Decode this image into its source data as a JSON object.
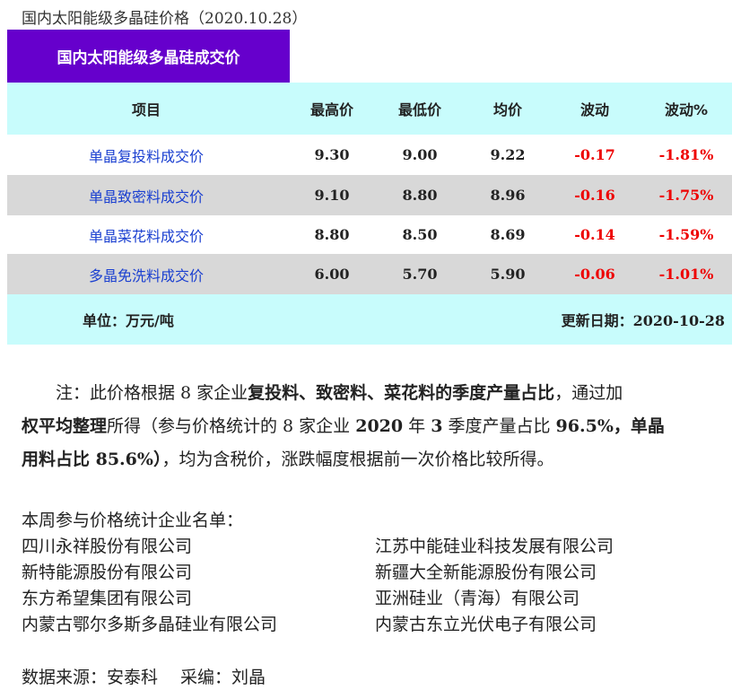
{
  "title": "国内太阳能级多晶硅价格（2020.10.28）",
  "banner": "国内太阳能级多晶硅成交价",
  "headers": [
    "项目",
    "最高价",
    "最低价",
    "均价",
    "波动",
    "波动%"
  ],
  "rows": [
    [
      "单晶复投料成交价",
      "9.30",
      "9.00",
      "9.22",
      "-0.17",
      "-1.81%"
    ],
    [
      "单晶致密料成交价",
      "9.10",
      "8.80",
      "8.96",
      "-0.16",
      "-1.75%"
    ],
    [
      "单晶菜花料成交价",
      "8.80",
      "8.50",
      "8.69",
      "-0.14",
      "-1.59%"
    ],
    [
      "多晶免洗料成交价",
      "6.00",
      "5.70",
      "5.90",
      "-0.06",
      "-1.01%"
    ]
  ],
  "footer": {
    "unit": "单位：万元/吨",
    "updated": "更新日期：2020-10-28"
  },
  "note": {
    "l1a": "注：此价格根据 8 家企业",
    "l1b": "复投料、致密料、菜花料的季度产量占比",
    "l1c": "，通过加",
    "l2a": "权平均整理",
    "l2b": "所得（参与价格统计的 8 家企业 ",
    "l2c": "2020",
    "l2d": " 年 ",
    "l2e": "3",
    "l2f": " 季度产量占比 ",
    "l2g": "96.5%",
    "l2h": "，单晶",
    "l3a": "用料占比 85.6%）",
    "l3b": "，均为含税价，涨跌幅度根据前一次价格比较所得。"
  },
  "list_title": "本周参与价格统计企业名单：",
  "companies_left": [
    "四川永祥股份有限公司",
    "新特能源股份有限公司",
    "东方希望集团有限公司",
    "内蒙古鄂尔多斯多晶硅业有限公司"
  ],
  "companies_right": [
    "江苏中能硅业科技发展有限公司",
    "新疆大全新能源股份有限公司",
    "亚洲硅业（青海）有限公司",
    "内蒙古东立光伏电子有限公司"
  ],
  "source": "数据来源：安泰科　 采编：刘晶"
}
